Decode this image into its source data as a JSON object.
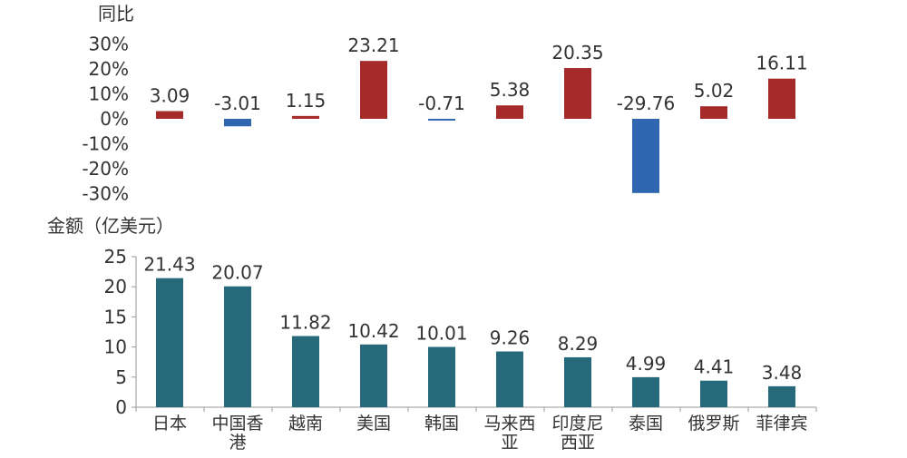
{
  "chart_data": [
    {
      "type": "bar",
      "ylabel": "同比",
      "categories": [
        "日本",
        "中国香港",
        "越南",
        "美国",
        "韩国",
        "马来西亚",
        "印度尼西亚",
        "泰国",
        "俄罗斯",
        "菲律宾"
      ],
      "values": [
        3.09,
        -3.01,
        1.15,
        23.21,
        -0.71,
        5.38,
        20.35,
        -29.76,
        5.02,
        16.11
      ],
      "value_labels": [
        "3.09",
        "-3.01",
        "1.15",
        "23.21",
        "-0.71",
        "5.38",
        "20.35",
        "-29.76",
        "5.02",
        "16.11"
      ],
      "ylim": [
        -30,
        30
      ],
      "yticks": [
        30,
        20,
        10,
        0,
        -10,
        -20,
        -30
      ],
      "ytick_labels": [
        "30%",
        "20%",
        "10%",
        "0%",
        "-10%",
        "-20%",
        "-30%"
      ],
      "positive_color": "#a52a2a",
      "negative_color": "#2e67b0",
      "grid": false
    },
    {
      "type": "bar",
      "ylabel": "金额（亿美元）",
      "categories": [
        "日本",
        "中国香港",
        "越南",
        "美国",
        "韩国",
        "马来西亚",
        "印度尼西亚",
        "泰国",
        "俄罗斯",
        "菲律宾"
      ],
      "category_lines": [
        [
          "日本"
        ],
        [
          "中国香",
          "港"
        ],
        [
          "越南"
        ],
        [
          "美国"
        ],
        [
          "韩国"
        ],
        [
          "马来西",
          "亚"
        ],
        [
          "印度尼",
          "西亚"
        ],
        [
          "泰国"
        ],
        [
          "俄罗斯"
        ],
        [
          "菲律宾"
        ]
      ],
      "values": [
        21.43,
        20.07,
        11.82,
        10.42,
        10.01,
        9.26,
        8.29,
        4.99,
        4.41,
        3.48
      ],
      "value_labels": [
        "21.43",
        "20.07",
        "11.82",
        "10.42",
        "10.01",
        "9.26",
        "8.29",
        "4.99",
        "4.41",
        "3.48"
      ],
      "ylim": [
        0,
        25
      ],
      "yticks": [
        25,
        20,
        15,
        10,
        5,
        0
      ],
      "ytick_labels": [
        "25",
        "20",
        "15",
        "10",
        "5",
        "0"
      ],
      "bar_color": "#25697a",
      "grid": false
    }
  ]
}
